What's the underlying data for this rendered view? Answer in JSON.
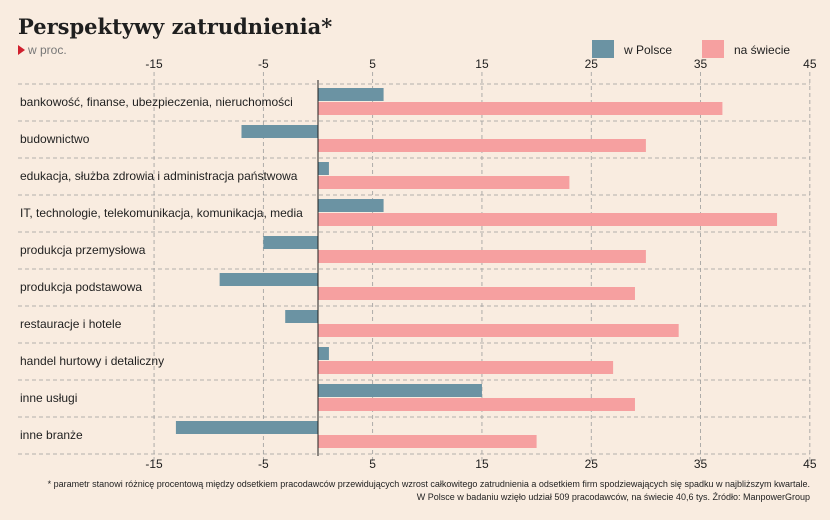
{
  "header": {
    "title": "Perspektywy zatrudnienia*",
    "unit": "w proc."
  },
  "legend": [
    {
      "label": "w Polsce",
      "color": "#6b93a3"
    },
    {
      "label": "na świecie",
      "color": "#f6a0a0"
    }
  ],
  "chart_data": {
    "type": "bar",
    "orientation": "horizontal",
    "title": "Perspektywy zatrudnienia*",
    "subtitle": "w proc.",
    "categories": [
      "bankowość, finanse, ubezpieczenia, nieruchomości",
      "budownictwo",
      "edukacja, służba zdrowia i administracja państwowa",
      "IT, technologie, telekomunikacja, komunikacja, media",
      "produkcja przemysłowa",
      "produkcja podstawowa",
      "restauracje i hotele",
      "handel hurtowy i detaliczny",
      "inne usługi",
      "inne branże"
    ],
    "series": [
      {
        "name": "w Polsce",
        "color": "#6b93a3",
        "values": [
          6,
          -7,
          1,
          6,
          -5,
          -9,
          -3,
          1,
          15,
          -13
        ]
      },
      {
        "name": "na świecie",
        "color": "#f6a0a0",
        "values": [
          37,
          30,
          23,
          42,
          30,
          29,
          33,
          27,
          29,
          20
        ]
      }
    ],
    "xlim": [
      -25,
      45
    ],
    "xticks": [
      -15,
      -5,
      5,
      15,
      25,
      35,
      45
    ],
    "grid": true,
    "legend_position": "top-right"
  },
  "footnote": {
    "line1": "* parametr stanowi różnicę procentową między odsetkiem pracodawców przewidujących wzrost całkowitego zatrudnienia a odsetkiem firm spodziewających się spadku w najbliższym kwartale.",
    "line2": "W Polsce w badaniu wzięło udział 509 pracodawców, na świecie 40,6 tys. Źródło: ManpowerGroup"
  }
}
